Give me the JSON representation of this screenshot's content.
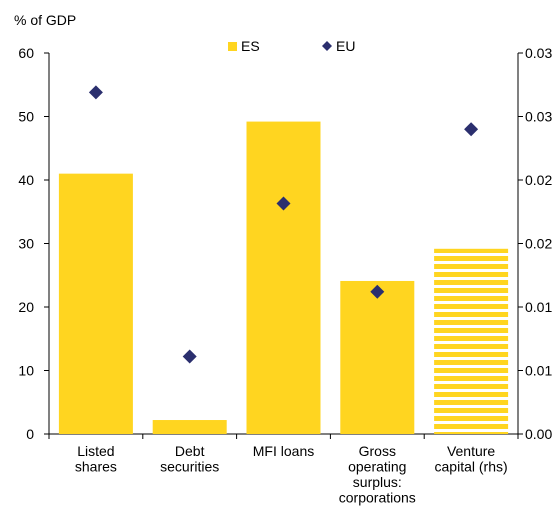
{
  "chart_data": {
    "type": "bar",
    "ylabel": "% of GDP",
    "categories": [
      [
        "Listed",
        "shares"
      ],
      [
        "Debt",
        "securities"
      ],
      [
        "MFI loans"
      ],
      [
        "Gross",
        "operating",
        "surplus:",
        "corporations"
      ],
      [
        "Venture",
        "capital (rhs)"
      ]
    ],
    "ylim": [
      0,
      60
    ],
    "yticks": [
      "0",
      "10",
      "20",
      "30",
      "40",
      "50",
      "60"
    ],
    "y2ticks": [
      "0.00",
      "0.01",
      "0.01",
      "0.02",
      "0.02",
      "0.03",
      "0.03"
    ],
    "legend_position": "top-center",
    "series": [
      {
        "name": "ES",
        "kind": "bar",
        "color": "#FFD520",
        "values": [
          41.0,
          2.2,
          49.2,
          24.1,
          0.0175
        ],
        "axes": [
          "left",
          "left",
          "left",
          "left",
          "right"
        ],
        "patterns": [
          "solid",
          "solid",
          "solid",
          "solid",
          "striped"
        ]
      },
      {
        "name": "EU",
        "kind": "marker",
        "marker": "diamond",
        "color": "#2B2F6E",
        "values": [
          53.8,
          12.2,
          36.3,
          22.4,
          0.0288
        ],
        "axes": [
          "left",
          "left",
          "left",
          "left",
          "right"
        ]
      }
    ],
    "y2lim": [
      0,
      0.036
    ]
  }
}
